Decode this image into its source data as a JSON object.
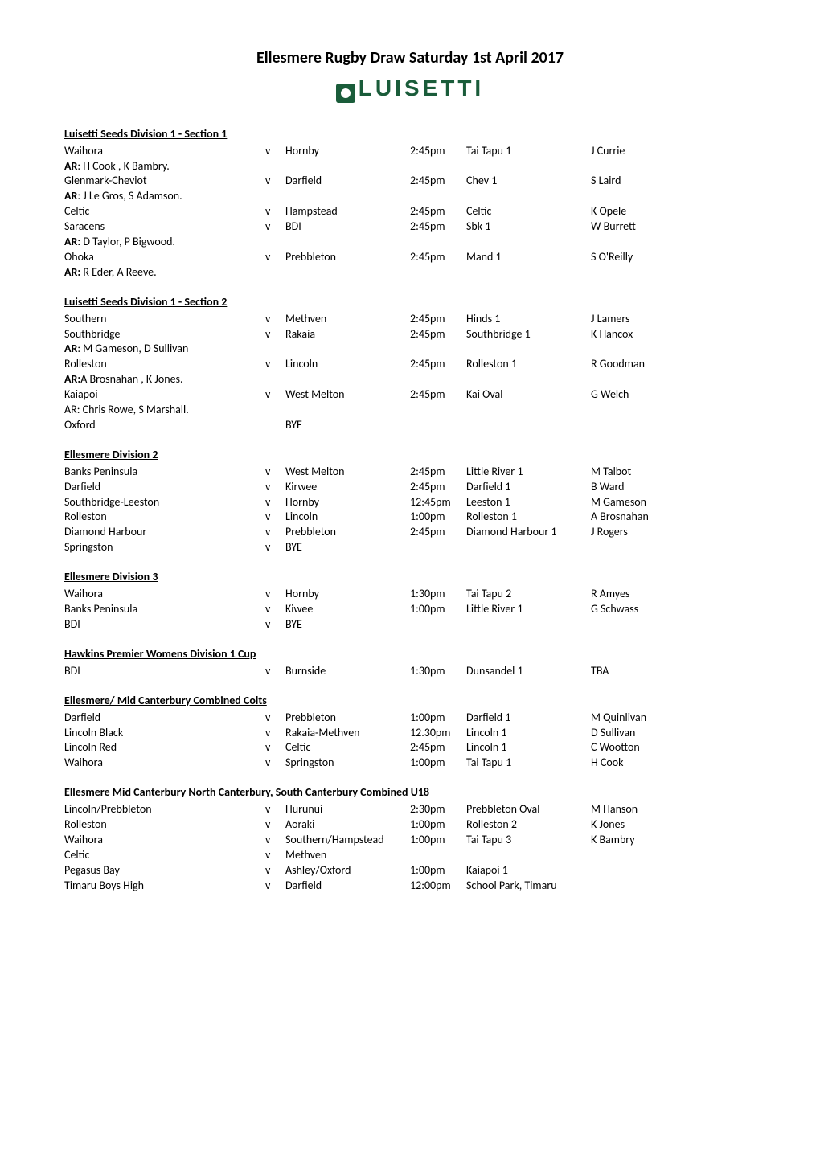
{
  "title": "Ellesmere Rugby Draw Saturday 1st April 2017",
  "logo_text": "LUISETTI",
  "sections": [
    {
      "heading": "Luisetti Seeds Division 1 - Section 1",
      "rows": [
        {
          "type": "fixture",
          "home": "Waihora",
          "v": "v",
          "away": "Hornby",
          "time": "2:45pm",
          "venue": "Tai Tapu 1",
          "ref": "J Currie"
        },
        {
          "type": "ar",
          "label": "AR",
          "names": ": H Cook , K Bambry."
        },
        {
          "type": "fixture",
          "home": "Glenmark-Cheviot",
          "v": "v",
          "away": "Darfield",
          "time": "2:45pm",
          "venue": "Chev  1",
          "ref": "S Laird"
        },
        {
          "type": "ar",
          "label": "AR",
          "names": ":  J Le Gros, S Adamson."
        },
        {
          "type": "fixture",
          "home": "Celtic",
          "v": "v",
          "away": "Hampstead",
          "time": "2:45pm",
          "venue": "Celtic",
          "ref": "K Opele"
        },
        {
          "type": "fixture",
          "home": "Saracens",
          "v": "v",
          "away": "BDI",
          "time": "2:45pm",
          "venue": "Sbk 1",
          "ref": "W Burrett"
        },
        {
          "type": "ar",
          "label": "AR:",
          "names": " D Taylor, P Bigwood."
        },
        {
          "type": "fixture",
          "home": "Ohoka",
          "v": "v",
          "away": "Prebbleton",
          "time": "2:45pm",
          "venue": "Mand 1",
          "ref": "S O'Reilly"
        },
        {
          "type": "ar",
          "label": "AR:",
          "names": " R Eder, A Reeve."
        }
      ]
    },
    {
      "heading": "Luisetti Seeds Division 1 - Section 2",
      "rows": [
        {
          "type": "fixture",
          "home": "Southern",
          "v": "v",
          "away": "Methven",
          "time": "2:45pm",
          "venue": "Hinds 1",
          "ref": "J Lamers"
        },
        {
          "type": "fixture",
          "home": "Southbridge",
          "v": "v",
          "away": "Rakaia",
          "time": "2:45pm",
          "venue": "Southbridge 1",
          "ref": "K Hancox"
        },
        {
          "type": "ar",
          "label": "AR",
          "names": ": M Gameson, D Sullivan"
        },
        {
          "type": "fixture",
          "home": "Rolleston",
          "v": "v",
          "away": "Lincoln",
          "time": "2:45pm",
          "venue": "Rolleston 1",
          "ref": "R Goodman"
        },
        {
          "type": "ar",
          "label": "AR:",
          "names": "A Brosnahan , K Jones."
        },
        {
          "type": "fixture",
          "home": "Kaiapoi",
          "v": "v",
          "away": "West Melton",
          "time": "2:45pm",
          "venue": "Kai Oval",
          "ref": "G Welch"
        },
        {
          "type": "ar_plain",
          "text": "AR: Chris Rowe, S Marshall."
        },
        {
          "type": "fixture",
          "home": "Oxford",
          "v": "",
          "away": "BYE",
          "time": "",
          "venue": "",
          "ref": ""
        }
      ]
    },
    {
      "heading": "Ellesmere Division 2",
      "rows": [
        {
          "type": "fixture",
          "home": "Banks Peninsula",
          "v": "v",
          "away": "West Melton",
          "time": "2:45pm",
          "venue": "Little River 1",
          "ref": "M Talbot"
        },
        {
          "type": "fixture",
          "home": "Darfield",
          "v": "v",
          "away": "Kirwee",
          "time": "2:45pm",
          "venue": "Darfield 1",
          "ref": "B Ward"
        },
        {
          "type": "fixture",
          "home": "Southbridge-Leeston",
          "v": "v",
          "away": "Hornby",
          "time": "12:45pm",
          "venue": "Leeston 1",
          "ref": "M Gameson"
        },
        {
          "type": "fixture",
          "home": "Rolleston",
          "v": "v",
          "away": "Lincoln",
          "time": "1:00pm",
          "venue": "Rolleston 1",
          "ref": "A Brosnahan"
        },
        {
          "type": "fixture",
          "home": "Diamond Harbour",
          "v": "v",
          "away": "Prebbleton",
          "time": "2:45pm",
          "venue": "Diamond Harbour 1",
          "ref": "J Rogers"
        },
        {
          "type": "fixture",
          "home": "Springston",
          "v": "v",
          "away": "BYE",
          "time": "",
          "venue": "",
          "ref": ""
        }
      ]
    },
    {
      "heading": "Ellesmere Division 3",
      "rows": [
        {
          "type": "fixture",
          "home": "Waihora",
          "v": "v",
          "away": "Hornby",
          "time": "1:30pm",
          "venue": "Tai Tapu 2",
          "ref": "R Amyes"
        },
        {
          "type": "fixture",
          "home": "Banks Peninsula",
          "v": "v",
          "away": "Kiwee",
          "time": "1:00pm",
          "venue": "Little River 1",
          "ref": "G Schwass"
        },
        {
          "type": "fixture",
          "home": "BDI",
          "v": "v",
          "away": "BYE",
          "time": "",
          "venue": "",
          "ref": ""
        }
      ]
    },
    {
      "heading": "Hawkins Premier Womens Division 1 Cup",
      "rows": [
        {
          "type": "fixture",
          "home": "BDI",
          "v": "v",
          "away": "Burnside",
          "time": "1:30pm",
          "venue": "Dunsandel 1",
          "ref": "TBA"
        }
      ]
    },
    {
      "heading": "Ellesmere/ Mid Canterbury Combined Colts",
      "rows": [
        {
          "type": "fixture",
          "home": "Darfield",
          "v": "v",
          "away": "Prebbleton",
          "time": "1:00pm",
          "venue": "Darfield 1",
          "ref": "M Quinlivan"
        },
        {
          "type": "fixture",
          "home": "Lincoln Black",
          "v": "v",
          "away": "Rakaia-Methven",
          "time": "12.30pm",
          "venue": "Lincoln 1",
          "ref": "D Sullivan"
        },
        {
          "type": "fixture",
          "home": "Lincoln Red",
          "v": "v",
          "away": "Celtic",
          "time": "2:45pm",
          "venue": "Lincoln 1",
          "ref": "C Wootton"
        },
        {
          "type": "fixture",
          "home": "Waihora",
          "v": "v",
          "away": "Springston",
          "time": "1:00pm",
          "venue": "Tai Tapu 1",
          "ref": "H Cook"
        }
      ]
    },
    {
      "heading": "Ellesmere Mid Canterbury North Canterbury, South Canterbury Combined U18",
      "rows": [
        {
          "type": "fixture",
          "home": "Lincoln/Prebbleton",
          "v": "v",
          "away": "Hurunui",
          "time": "2:30pm",
          "venue": "Prebbleton Oval",
          "ref": "M Hanson"
        },
        {
          "type": "fixture",
          "home": "Rolleston",
          "v": "v",
          "away": "Aoraki",
          "time": "1:00pm",
          "venue": "Rolleston 2",
          "ref": "K Jones"
        },
        {
          "type": "fixture",
          "home": "Waihora",
          "v": "v",
          "away": "Southern/Hampstead",
          "time": "1:00pm",
          "venue": "Tai Tapu 3",
          "ref": "K Bambry"
        },
        {
          "type": "fixture",
          "home": "Celtic",
          "v": "v",
          "away": "Methven",
          "time": "",
          "venue": "",
          "ref": ""
        },
        {
          "type": "fixture",
          "home": "Pegasus Bay",
          "v": "v",
          "away": "Ashley/Oxford",
          "time": "1:00pm",
          "venue": "Kaiapoi 1",
          "ref": ""
        },
        {
          "type": "fixture",
          "home": "Timaru Boys High",
          "v": "v",
          "away": "Darfield",
          "time": "12:00pm",
          "venue": "School Park, Timaru",
          "ref": ""
        }
      ]
    }
  ]
}
